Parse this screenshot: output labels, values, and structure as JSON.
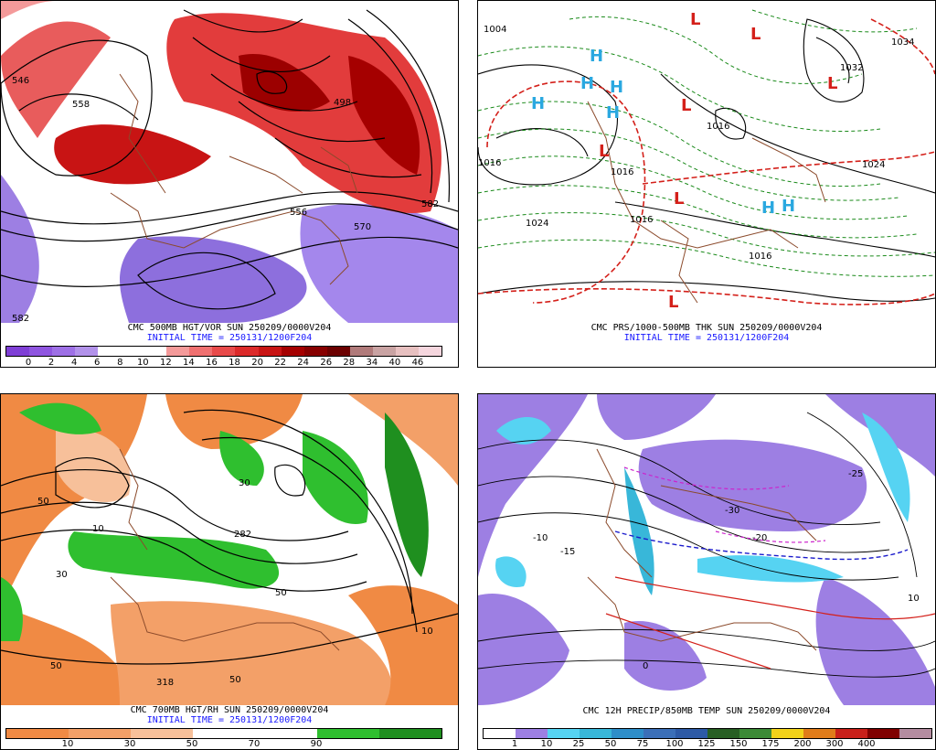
{
  "panels": [
    {
      "title": "CMC 500MB HGT/VOR SUN 250209/0000V204",
      "init": "INITIAL TIME = 250131/1200F204",
      "colorbar": {
        "colors": [
          "#7f3fd6",
          "#8f55e0",
          "#9e70e6",
          "#b292ea",
          "#ffffff",
          "#ffffff",
          "#ffffff",
          "#f49a9a",
          "#ef7070",
          "#e84a4a",
          "#dc2a2a",
          "#c81414",
          "#a50000",
          "#870000",
          "#6b0000",
          "#b07a7a",
          "#c9a3a3",
          "#e7c0c0",
          "#f5d6de"
        ],
        "labels": [
          "0",
          "2",
          "4",
          "6",
          "8",
          "10",
          "12",
          "14",
          "16",
          "18",
          "20",
          "22",
          "24",
          "26",
          "28",
          "34",
          "40",
          "46"
        ]
      },
      "map_labels": [
        "546",
        "558",
        "498",
        "570",
        "582",
        "582",
        "556"
      ]
    },
    {
      "title": "CMC PRS/1000-500MB THK SUN 250209/0000V204",
      "init": "INITIAL TIME = 250131/1200F204",
      "map_labels": [
        "1004",
        "1016",
        "1016",
        "1024",
        "1016",
        "1032",
        "1034",
        "1024",
        "1016",
        "1016"
      ],
      "highs": [
        "H",
        "H",
        "H",
        "H",
        "H",
        "H",
        "H"
      ],
      "lows": [
        "L",
        "L",
        "L",
        "L",
        "L",
        "L",
        "L"
      ]
    },
    {
      "title": "CMC 700MB HGT/RH SUN 250209/0000V204",
      "init": "INITIAL TIME = 250131/1200F204",
      "colorbar": {
        "colors": [
          "#f08a44",
          "#f3a068",
          "#f7c09a",
          "#ffffff",
          "#ffffff",
          "#2fbf2f",
          "#1f8f1f"
        ],
        "labels": [
          "10",
          "30",
          "50",
          "70",
          "90"
        ]
      },
      "map_labels": [
        "50",
        "30",
        "10",
        "50",
        "30",
        "50",
        "318",
        "282",
        "50",
        "10"
      ]
    },
    {
      "title": "CMC 12H PRECIP/850MB TEMP SUN 250209/0000V204",
      "colorbar": {
        "colors": [
          "#ffffff",
          "#9d7fe3",
          "#56d3f2",
          "#38b7d9",
          "#2e8ec9",
          "#3b6fb8",
          "#2d5aa6",
          "#285f24",
          "#3c8a36",
          "#f2d21a",
          "#e07c1a",
          "#c8201a",
          "#800000",
          "#b48ca0"
        ],
        "labels": [
          "1",
          "10",
          "25",
          "50",
          "75",
          "100",
          "125",
          "150",
          "175",
          "200",
          "300",
          "400"
        ]
      },
      "map_labels": [
        "-30",
        "-20",
        "-10",
        "0",
        "10",
        "-15",
        "-25"
      ]
    }
  ]
}
